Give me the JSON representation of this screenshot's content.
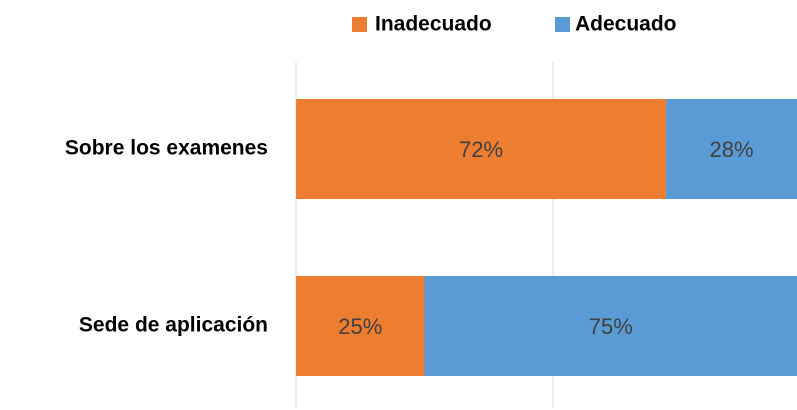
{
  "chart_data": {
    "type": "stacked-bar-horizontal",
    "categories": [
      "Sobre los examenes",
      "Sede de aplicación"
    ],
    "series": [
      {
        "name": "Inadecuado",
        "color": "#ED7D31",
        "values": [
          72,
          25
        ],
        "value_labels": [
          "72%",
          "25%"
        ]
      },
      {
        "name": "Adecuado",
        "color": "#5B9BD5",
        "values": [
          28,
          75
        ],
        "value_labels": [
          "28%",
          "75%"
        ]
      }
    ],
    "xlim": [
      0,
      100
    ],
    "xticks": [
      0,
      50,
      100
    ],
    "grid": true,
    "legend": "top"
  }
}
